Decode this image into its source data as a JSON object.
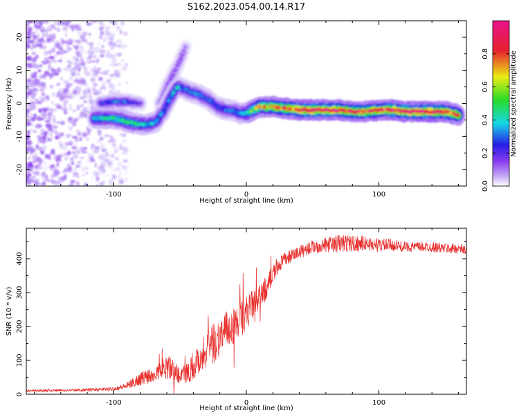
{
  "title": "S162.2023.054.00.14.R17",
  "colors": {
    "snr_line": "#e8312e",
    "spectral_low": "#8a3cf0",
    "spectral_mid": "#16d8e6",
    "spectral_high": "#e8202e"
  },
  "chart_data": [
    {
      "type": "heatmap",
      "xlabel": "Height of straight line (km)",
      "ylabel": "Frequency (Hz)",
      "xlim": [
        -166,
        166
      ],
      "ylim": [
        -25,
        25
      ],
      "xticks": [
        -100,
        0,
        100
      ],
      "xtick_labels": [
        "-100",
        "0",
        "100"
      ],
      "yticks": [
        -20,
        -10,
        0,
        10,
        20
      ],
      "ytick_labels": [
        "-20",
        "-10",
        "0",
        "10",
        "20"
      ],
      "grid": false,
      "colorbar": {
        "label": "Normalized spectral amplitude",
        "range": [
          0,
          1
        ],
        "ticks": [
          0.0,
          0.2,
          0.4,
          0.6,
          0.8
        ],
        "tick_labels": [
          "0.0",
          "0.2",
          "0.4",
          "0.6",
          "0.8"
        ]
      },
      "ridge": {
        "x": [
          -115,
          -100,
          -85,
          -75,
          -68,
          -62,
          -57,
          -52,
          -48,
          -42,
          -35,
          -28,
          -22,
          -15,
          -10,
          -5,
          0,
          5,
          10,
          20,
          30,
          40,
          50,
          60,
          70,
          80,
          90,
          100,
          110,
          120,
          130,
          140,
          150,
          160
        ],
        "y": [
          -4.5,
          -4.5,
          -6,
          -6.5,
          -5.5,
          -2,
          2,
          5,
          4.5,
          3.5,
          2.5,
          1,
          -1,
          -2,
          -2,
          -3,
          -3,
          -2,
          -1,
          -1,
          -1.5,
          -2,
          -2,
          -2,
          -2,
          -2.5,
          -2.5,
          -2,
          -2,
          -2.5,
          -2.5,
          -2.5,
          -2.5,
          -3.5
        ],
        "amplitude": [
          0.4,
          0.45,
          0.45,
          0.4,
          0.35,
          0.3,
          0.35,
          0.4,
          0.3,
          0.3,
          0.3,
          0.3,
          0.25,
          0.3,
          0.3,
          0.35,
          0.4,
          0.6,
          0.7,
          0.75,
          0.8,
          0.9,
          0.95,
          0.95,
          0.9,
          0.85,
          0.85,
          0.85,
          0.9,
          0.95,
          0.95,
          0.95,
          0.9,
          0.8
        ]
      },
      "secondary_ridge": {
        "x": [
          -65,
          -60,
          -55,
          -50,
          -46
        ],
        "y": [
          0,
          5,
          9,
          13,
          17
        ],
        "amplitude": [
          0.15,
          0.15,
          0.15,
          0.15,
          0.1
        ]
      },
      "upper_band": {
        "x": [
          -110,
          -100,
          -90,
          -80
        ],
        "y": [
          0,
          0.5,
          0.5,
          0
        ],
        "amplitude": [
          0.25,
          0.3,
          0.3,
          0.2
        ]
      },
      "noise_region": {
        "x_from": -166,
        "x_to": -90,
        "amplitude": 0.1
      }
    },
    {
      "type": "line",
      "xlabel": "Height of straight line (km)",
      "ylabel": "SNR (10 * v/v)",
      "xlim": [
        -166,
        166
      ],
      "ylim": [
        0,
        490
      ],
      "xticks": [
        -100,
        0,
        100
      ],
      "xtick_labels": [
        "-100",
        "0",
        "100"
      ],
      "yticks": [
        0,
        100,
        200,
        300,
        400
      ],
      "ytick_labels": [
        "0",
        "100",
        "200",
        "300",
        "400"
      ],
      "grid": false,
      "series": [
        {
          "x": [
            -166,
            -150,
            -130,
            -110,
            -100,
            -90,
            -85,
            -80,
            -75,
            -70,
            -65,
            -60,
            -55,
            -50,
            -45,
            -40,
            -35,
            -30,
            -25,
            -20,
            -15,
            -10,
            -5,
            0,
            5,
            10,
            15,
            20,
            25,
            30,
            35,
            40,
            50,
            60,
            70,
            80,
            90,
            100,
            110,
            120,
            130,
            140,
            150,
            160,
            166
          ],
          "y": [
            10,
            11,
            12,
            14,
            16,
            25,
            35,
            45,
            55,
            60,
            70,
            85,
            70,
            55,
            65,
            80,
            110,
            130,
            150,
            170,
            190,
            200,
            220,
            240,
            265,
            280,
            315,
            355,
            385,
            400,
            410,
            420,
            435,
            440,
            445,
            445,
            445,
            440,
            440,
            435,
            435,
            435,
            430,
            430,
            425
          ],
          "noise": [
            3,
            4,
            4,
            5,
            5,
            10,
            15,
            20,
            25,
            25,
            30,
            40,
            30,
            25,
            30,
            40,
            50,
            55,
            60,
            60,
            55,
            55,
            55,
            50,
            45,
            40,
            35,
            30,
            25,
            20,
            20,
            20,
            20,
            22,
            28,
            25,
            22,
            20,
            18,
            15,
            15,
            15,
            15,
            15,
            15
          ]
        }
      ]
    }
  ]
}
